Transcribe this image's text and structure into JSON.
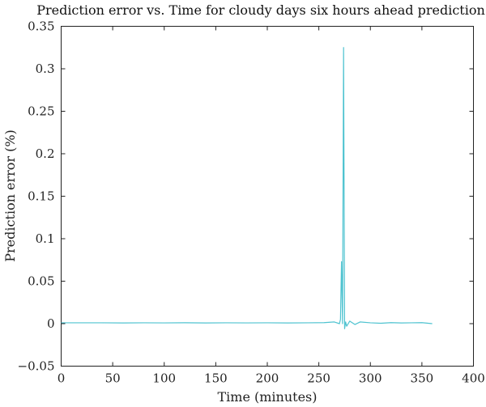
{
  "chart_data": {
    "type": "line",
    "title": "Prediction error vs. Time for cloudy days six hours ahead prediction",
    "xlabel": "Time (minutes)",
    "ylabel": "Prediction error (%)",
    "xlim": [
      0,
      400
    ],
    "ylim": [
      -0.05,
      0.35
    ],
    "xticks": [
      0,
      50,
      100,
      150,
      200,
      250,
      300,
      350,
      400
    ],
    "xtick_labels": [
      "0",
      "50",
      "100",
      "150",
      "200",
      "250",
      "300",
      "350",
      "400"
    ],
    "yticks": [
      -0.05,
      0,
      0.05,
      0.1,
      0.15,
      0.2,
      0.25,
      0.3,
      0.35
    ],
    "ytick_labels": [
      "−0.05",
      "0",
      "0.05",
      "0.1",
      "0.15",
      "0.2",
      "0.25",
      "0.3",
      "0.35"
    ],
    "grid": false,
    "series": [
      {
        "color": "#4fc3d0",
        "x": [
          0,
          20,
          40,
          60,
          80,
          100,
          120,
          140,
          160,
          180,
          200,
          220,
          240,
          255,
          265,
          270,
          271,
          272,
          273,
          274,
          275,
          276,
          277,
          280,
          285,
          290,
          300,
          310,
          320,
          330,
          340,
          350,
          360
        ],
        "y": [
          0.001,
          0.001,
          0.001,
          0.0008,
          0.001,
          0.0009,
          0.0011,
          0.0008,
          0.001,
          0.0009,
          0.001,
          0.0008,
          0.001,
          0.0012,
          0.002,
          0.0,
          0.005,
          0.073,
          0.0,
          0.325,
          -0.006,
          0.002,
          -0.003,
          0.003,
          -0.001,
          0.002,
          0.001,
          0.0005,
          0.0012,
          0.0008,
          0.001,
          0.0012,
          0.0
        ]
      }
    ]
  }
}
